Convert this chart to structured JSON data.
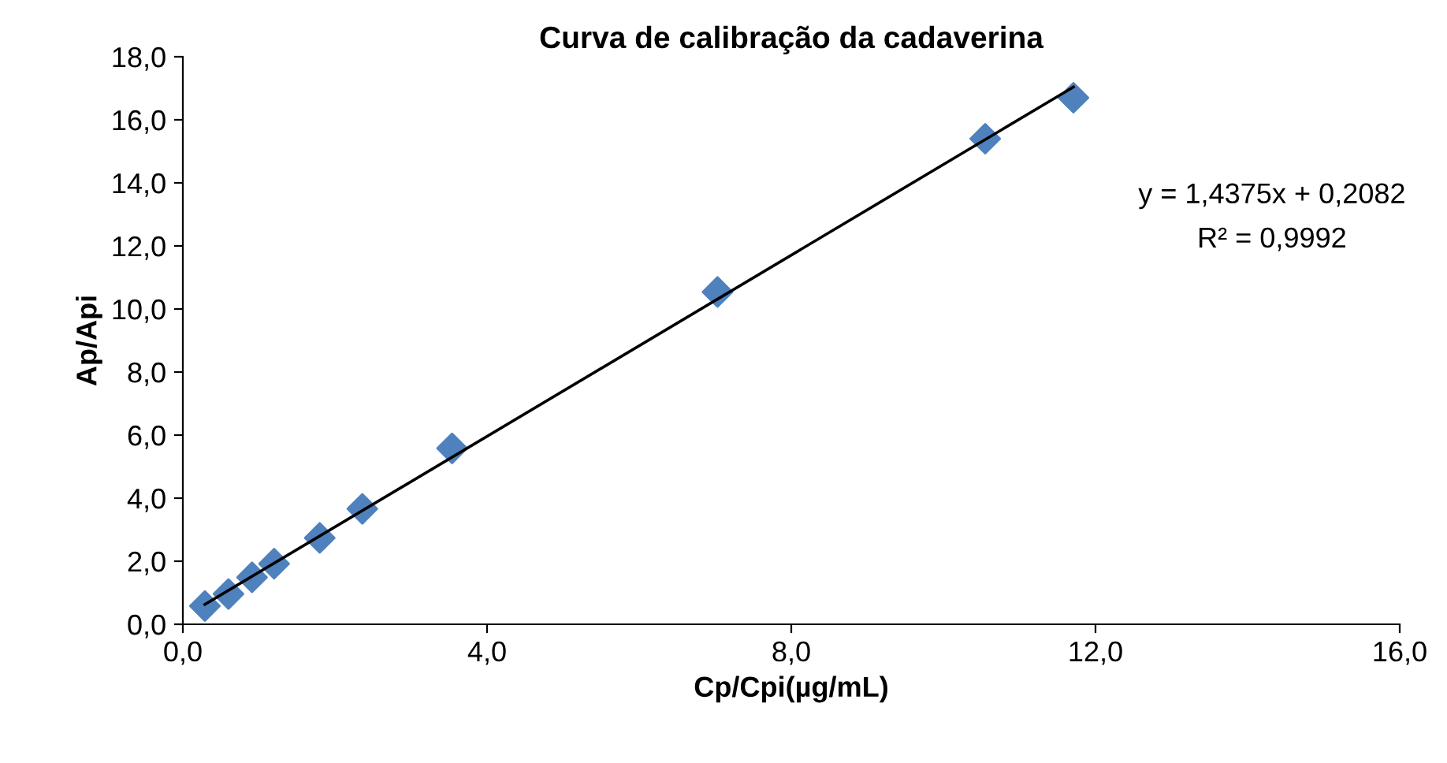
{
  "chart_data": {
    "type": "scatter",
    "title": "Curva de calibração da cadaverina",
    "xlabel": "Cp/Cpi(µg/mL)",
    "ylabel": "Ap/Api",
    "xlim": [
      0,
      16
    ],
    "ylim": [
      0,
      18
    ],
    "xticks": [
      {
        "value": 0,
        "label": "0,0"
      },
      {
        "value": 4,
        "label": "4,0"
      },
      {
        "value": 8,
        "label": "8,0"
      },
      {
        "value": 12,
        "label": "12,0"
      },
      {
        "value": 16,
        "label": "16,0"
      }
    ],
    "yticks": [
      {
        "value": 0,
        "label": "0,0"
      },
      {
        "value": 2,
        "label": "2,0"
      },
      {
        "value": 4,
        "label": "4,0"
      },
      {
        "value": 6,
        "label": "6,0"
      },
      {
        "value": 8,
        "label": "8,0"
      },
      {
        "value": 10,
        "label": "10,0"
      },
      {
        "value": 12,
        "label": "12,0"
      },
      {
        "value": 14,
        "label": "14,0"
      },
      {
        "value": 16,
        "label": "16,0"
      },
      {
        "value": 18,
        "label": "18,0"
      }
    ],
    "grid": false,
    "legend": false,
    "series": [
      {
        "marker": "diamond",
        "color": "#4f81bd",
        "x": [
          0.29,
          0.6,
          0.91,
          1.2,
          1.8,
          2.36,
          3.54,
          7.03,
          10.55,
          11.71
        ],
        "values": [
          0.58,
          0.96,
          1.49,
          1.92,
          2.74,
          3.66,
          5.58,
          10.54,
          15.4,
          16.7
        ]
      },
      {
        "type": "line",
        "color": "#000000",
        "x": [
          0.29,
          11.71
        ],
        "values": [
          0.63,
          17.04
        ],
        "line_style": "solid"
      }
    ],
    "annotations": [
      "y = 1,4375x + 0,2082",
      "R² = 0,9992"
    ]
  }
}
